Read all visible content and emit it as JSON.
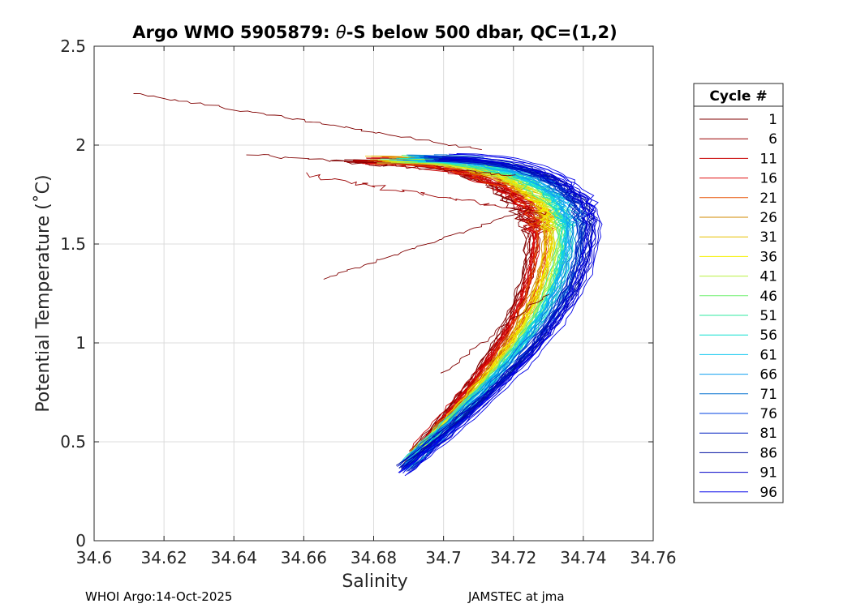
{
  "chart_data": {
    "type": "line",
    "title_prefix": "Argo WMO 5905879: ",
    "title_theta": "θ",
    "title_suffix": "-S below 500 dbar,  QC=(1,2)",
    "xlabel": "Salinity",
    "ylabel": "Potential Temperature (˚C)",
    "xlim": [
      34.6,
      34.76
    ],
    "ylim": [
      0,
      2.5
    ],
    "xticks": [
      34.6,
      34.62,
      34.64,
      34.66,
      34.68,
      34.7,
      34.72,
      34.74,
      34.76
    ],
    "xtick_labels": [
      "34.6",
      "34.62",
      "34.64",
      "34.66",
      "34.68",
      "34.7",
      "34.72",
      "34.74",
      "34.76"
    ],
    "yticks": [
      0,
      0.5,
      1,
      1.5,
      2,
      2.5
    ],
    "ytick_labels": [
      "0",
      "0.5",
      "1",
      "1.5",
      "2",
      "2.5"
    ],
    "grid": true,
    "legend_title": "Cycle #",
    "legend_placement": "outside-right",
    "series": [
      {
        "name": "1",
        "color": "#800000"
      },
      {
        "name": "6",
        "color": "#9a0000"
      },
      {
        "name": "11",
        "color": "#c80000"
      },
      {
        "name": "16",
        "color": "#e01010"
      },
      {
        "name": "21",
        "color": "#e85000"
      },
      {
        "name": "26",
        "color": "#d08800"
      },
      {
        "name": "31",
        "color": "#e8c000"
      },
      {
        "name": "36",
        "color": "#f4f000"
      },
      {
        "name": "41",
        "color": "#b8f040"
      },
      {
        "name": "46",
        "color": "#70f070"
      },
      {
        "name": "51",
        "color": "#30e8a0"
      },
      {
        "name": "56",
        "color": "#10e0d0"
      },
      {
        "name": "61",
        "color": "#10c8f0"
      },
      {
        "name": "66",
        "color": "#10a0f0"
      },
      {
        "name": "71",
        "color": "#0070d0"
      },
      {
        "name": "76",
        "color": "#0040e0"
      },
      {
        "name": "81",
        "color": "#0020c0"
      },
      {
        "name": "86",
        "color": "#0010a0"
      },
      {
        "name": "91",
        "color": "#0000c8"
      },
      {
        "name": "96",
        "color": "#0000e8"
      }
    ]
  },
  "footer": {
    "left": "WHOI Argo:14-Oct-2025",
    "right": "JAMSTEC at jma"
  }
}
